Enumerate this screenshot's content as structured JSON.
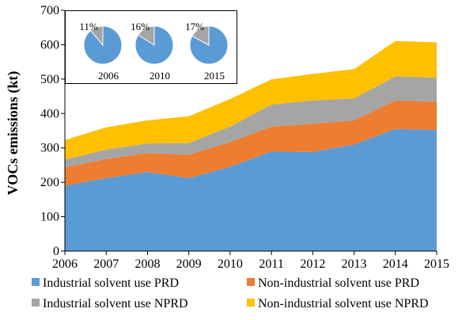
{
  "chart_data": {
    "type": "area",
    "stacked": true,
    "x": [
      2006,
      2007,
      2008,
      2009,
      2010,
      2011,
      2012,
      2013,
      2014,
      2015
    ],
    "xlabel": "",
    "ylabel": "VOCs emissions  (kt)",
    "ylim": [
      0,
      700
    ],
    "yticks": [
      0,
      100,
      200,
      300,
      400,
      500,
      600,
      700
    ],
    "grid": false,
    "legend_position": "bottom",
    "series": [
      {
        "name": "Industrial solvent use PRD",
        "color": "#5B9BD5",
        "values": [
          190,
          212,
          230,
          212,
          245,
          290,
          288,
          310,
          355,
          352
        ]
      },
      {
        "name": "Non-industrial solvent use PRD",
        "color": "#ED7D31",
        "values": [
          53,
          56,
          55,
          68,
          72,
          72,
          82,
          70,
          83,
          82
        ]
      },
      {
        "name": "Industrial solvent use NPRD",
        "color": "#A5A5A5",
        "values": [
          23,
          27,
          28,
          34,
          45,
          64,
          68,
          64,
          70,
          70
        ]
      },
      {
        "name": "Non-industrial solvent use NPRD",
        "color": "#FFC000",
        "values": [
          57,
          65,
          67,
          78,
          80,
          73,
          77,
          85,
          103,
          103
        ]
      }
    ],
    "insets": [
      {
        "year_label": "2006",
        "percent_label": "11%",
        "minor_fraction": 0.11,
        "major_color": "#5B9BD5",
        "minor_color": "#A5A5A5"
      },
      {
        "year_label": "2010",
        "percent_label": "16%",
        "minor_fraction": 0.16,
        "major_color": "#5B9BD5",
        "minor_color": "#A5A5A5"
      },
      {
        "year_label": "2015",
        "percent_label": "17%",
        "minor_fraction": 0.17,
        "major_color": "#5B9BD5",
        "minor_color": "#A5A5A5"
      }
    ]
  }
}
